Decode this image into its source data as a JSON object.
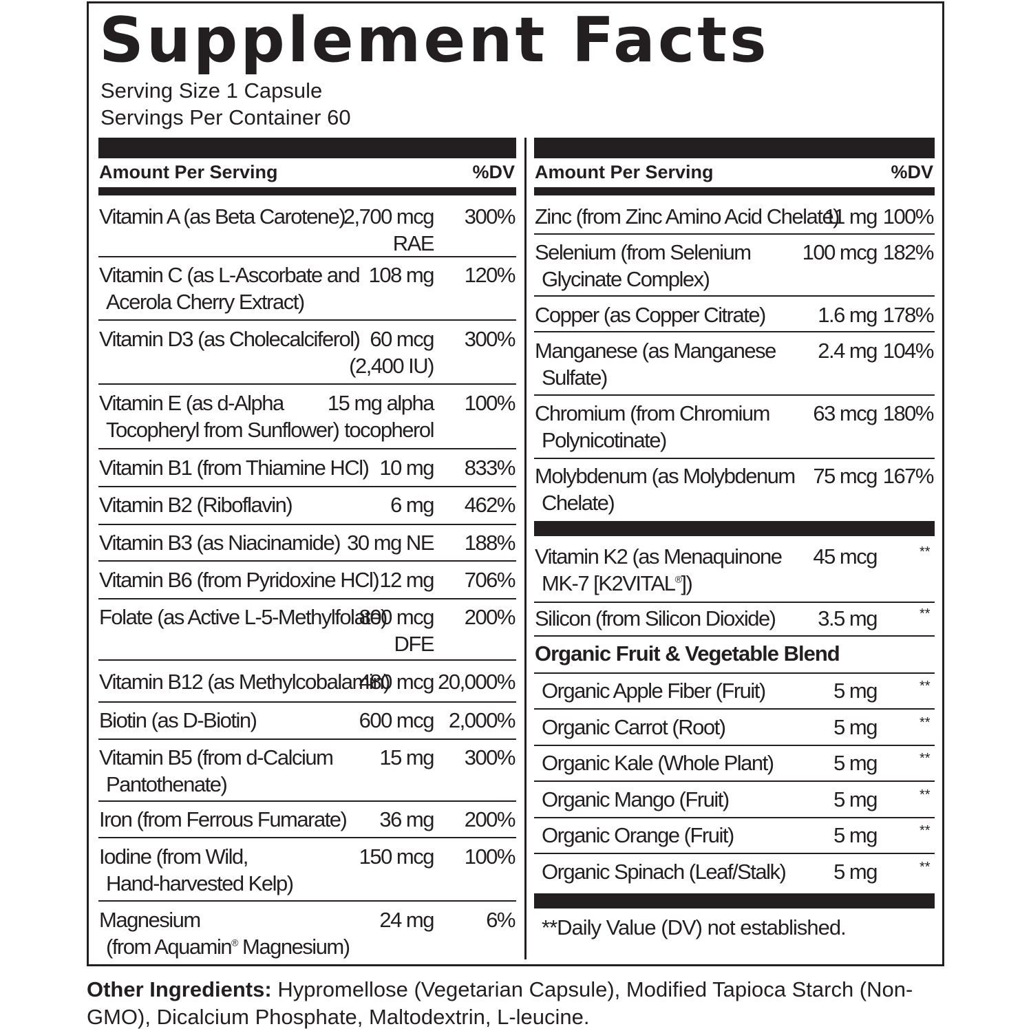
{
  "title": "Supplement Facts",
  "serving_size": "Serving Size 1 Capsule",
  "servings_per_container": "Servings Per Container 60",
  "header": {
    "amount": "Amount Per Serving",
    "dv": "%DV"
  },
  "left_rows": [
    {
      "name1": "Vitamin A (as Beta Carotene)",
      "name2": "",
      "amt1": "2,700 mcg",
      "amt2": "RAE",
      "dv": "300%"
    },
    {
      "name1": "Vitamin C (as L-Ascorbate and",
      "name2": "Acerola Cherry Extract)",
      "amt1": "108 mg",
      "amt2": "",
      "dv": "120%"
    },
    {
      "name1": "Vitamin D3 (as Cholecalciferol)",
      "name2": "",
      "amt1": "60 mcg",
      "amt2": "(2,400 IU)",
      "dv": "300%"
    },
    {
      "name1": "Vitamin E (as d-Alpha",
      "name2": "Tocopheryl from Sunflower)",
      "amt1": "15 mg alpha",
      "amt2": "tocopherol",
      "dv": "100%"
    },
    {
      "name1": "Vitamin B1 (from Thiamine HCl)",
      "name2": "",
      "amt1": "10 mg",
      "amt2": "",
      "dv": "833%"
    },
    {
      "name1": "Vitamin B2 (Riboflavin)",
      "name2": "",
      "amt1": "6 mg",
      "amt2": "",
      "dv": "462%"
    },
    {
      "name1": "Vitamin B3 (as Niacinamide)",
      "name2": "",
      "amt1": "30 mg NE",
      "amt2": "",
      "dv": "188%"
    },
    {
      "name1": "Vitamin B6 (from Pyridoxine HCl)",
      "name2": "",
      "amt1": "12 mg",
      "amt2": "",
      "dv": "706%"
    },
    {
      "name1": "Folate (as Active L-5-Methylfolate)",
      "name2": "",
      "amt1": "800 mcg",
      "amt2": "DFE",
      "dv": "200%"
    },
    {
      "name1": "Vitamin B12 (as Methylcobalamin)",
      "name2": "",
      "amt1": "480 mcg",
      "amt2": "",
      "dv": "20,000%"
    },
    {
      "name1": "Biotin (as D-Biotin)",
      "name2": "",
      "amt1": "600 mcg",
      "amt2": "",
      "dv": "2,000%"
    },
    {
      "name1": "Vitamin B5 (from d-Calcium",
      "name2": "Pantothenate)",
      "amt1": "15 mg",
      "amt2": "",
      "dv": "300%"
    },
    {
      "name1": "Iron (from Ferrous Fumarate)",
      "name2": "",
      "amt1": "36 mg",
      "amt2": "",
      "dv": "200%"
    },
    {
      "name1": "Iodine (from Wild,",
      "name2": "Hand-harvested Kelp)",
      "amt1": "150 mcg",
      "amt2": "",
      "dv": "100%"
    },
    {
      "name1": "Magnesium",
      "name2": "(from Aquamin",
      "name2_sup": "®",
      "name2_after": " Magnesium)",
      "amt1": "24 mg",
      "amt2": "",
      "dv": "6%"
    }
  ],
  "right_rows": [
    {
      "name1": "Zinc (from Zinc Amino Acid Chelate)",
      "name2": "",
      "amt": "11 mg",
      "dv": "100%"
    },
    {
      "name1": "Selenium (from Selenium",
      "name2": "Glycinate Complex)",
      "amt": "100 mcg",
      "dv": "182%"
    },
    {
      "name1": "Copper (as Copper Citrate)",
      "name2": "",
      "amt": "1.6 mg",
      "dv": "178%"
    },
    {
      "name1": "Manganese (as Manganese",
      "name2": "Sulfate)",
      "amt": "2.4 mg",
      "dv": "104%"
    },
    {
      "name1": "Chromium (from Chromium",
      "name2": "Polynicotinate)",
      "amt": "63 mcg",
      "dv": "180%"
    },
    {
      "name1": "Molybdenum (as Molybdenum",
      "name2": "Chelate)",
      "amt": "75 mcg",
      "dv": "167%"
    }
  ],
  "right_rows_2": [
    {
      "name1": "Vitamin K2 (as Menaquinone",
      "name2": "MK-7 [K2VITAL",
      "name2_sup": "®",
      "name2_after": "])",
      "amt": "45 mcg",
      "dv": "**"
    },
    {
      "name1": "Silicon (from Silicon Dioxide)",
      "name2": "",
      "amt": "3.5 mg",
      "dv": "**"
    }
  ],
  "blend_title": "Organic Fruit & Vegetable Blend",
  "blend_rows": [
    {
      "name": "Organic Apple Fiber (Fruit)",
      "amt": "5 mg",
      "dv": "**"
    },
    {
      "name": "Organic Carrot (Root)",
      "amt": "5 mg",
      "dv": "**"
    },
    {
      "name": "Organic Kale (Whole Plant)",
      "amt": "5 mg",
      "dv": "**"
    },
    {
      "name": "Organic Mango (Fruit)",
      "amt": "5 mg",
      "dv": "**"
    },
    {
      "name": "Organic Orange (Fruit)",
      "amt": "5 mg",
      "dv": "**"
    },
    {
      "name": "Organic Spinach (Leaf/Stalk)",
      "amt": "5 mg",
      "dv": "**"
    }
  ],
  "footnote": "**Daily Value (DV) not established.",
  "other_label": "Other Ingredients:",
  "other_text": " Hypromellose (Vegetarian Capsule), Modified Tapioca Starch (Non-GMO), Dicalcium Phosphate, Maltodextrin, L-leucine."
}
